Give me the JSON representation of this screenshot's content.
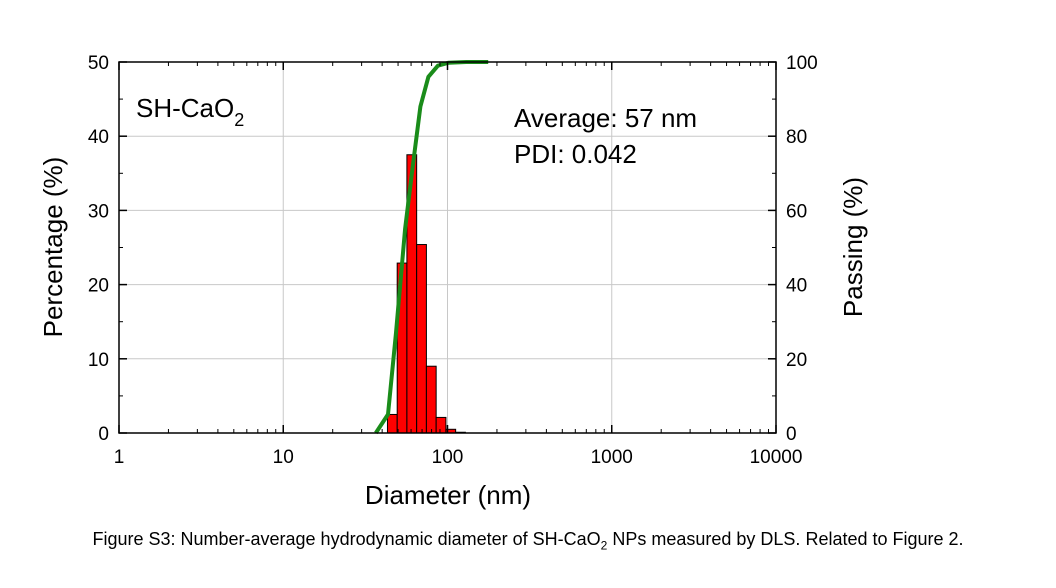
{
  "chart_data": {
    "type": "bar",
    "title": "",
    "annotations": {
      "sample_prefix": "SH-CaO",
      "sample_subscript": "2",
      "average": "Average: 57 nm",
      "pdi": "PDI: 0.042"
    },
    "xlabel": "Diameter (nm)",
    "ylabel_left": "Percentage (%)",
    "ylabel_right": "Passing (%)",
    "x_scale": "log",
    "xlim": [
      1,
      10000
    ],
    "ylim_left": [
      0,
      50
    ],
    "ylim_right": [
      0,
      100
    ],
    "x_ticks": [
      1,
      10,
      100,
      1000,
      10000
    ],
    "x_tick_labels": [
      "1",
      "10",
      "100",
      "1000",
      "10000"
    ],
    "y_left_ticks": [
      0,
      10,
      20,
      30,
      40,
      50
    ],
    "y_left_tick_labels": [
      "0",
      "10",
      "20",
      "30",
      "40",
      "50"
    ],
    "y_right_ticks": [
      0,
      20,
      40,
      60,
      80,
      100
    ],
    "y_right_tick_labels": [
      "0",
      "20",
      "40",
      "60",
      "80",
      "100"
    ],
    "grid": true,
    "bars": [
      {
        "x_start": 43.1,
        "x_end": 49.4,
        "value": 2.5
      },
      {
        "x_start": 49.4,
        "x_end": 56.6,
        "value": 22.9
      },
      {
        "x_start": 56.6,
        "x_end": 64.9,
        "value": 37.5
      },
      {
        "x_start": 64.9,
        "x_end": 74.4,
        "value": 25.4
      },
      {
        "x_start": 74.4,
        "x_end": 85.3,
        "value": 9.0
      },
      {
        "x_start": 85.3,
        "x_end": 97.8,
        "value": 2.1
      },
      {
        "x_start": 97.8,
        "x_end": 112.1,
        "value": 0.5
      },
      {
        "x_start": 112.1,
        "x_end": 128.5,
        "value": 0.1
      }
    ],
    "cumulative": {
      "x": [
        36.6,
        43.4,
        48.6,
        55.2,
        61.5,
        68.4,
        76.5,
        87.4,
        101.6,
        130,
        177
      ],
      "y": [
        0,
        5,
        27,
        55,
        72,
        88,
        96,
        99,
        99.8,
        100,
        100
      ]
    },
    "colors": {
      "bar_fill": "#ff0000",
      "bar_stroke": "#000000",
      "cumulative_line": "#1a8c1a",
      "grid": "#c8c8c8"
    }
  },
  "caption": {
    "before_sub": "Figure S3: Number-average hydrodynamic diameter of SH-CaO",
    "sub": "2",
    "after_sub": " NPs measured by DLS. Related to Figure 2."
  }
}
